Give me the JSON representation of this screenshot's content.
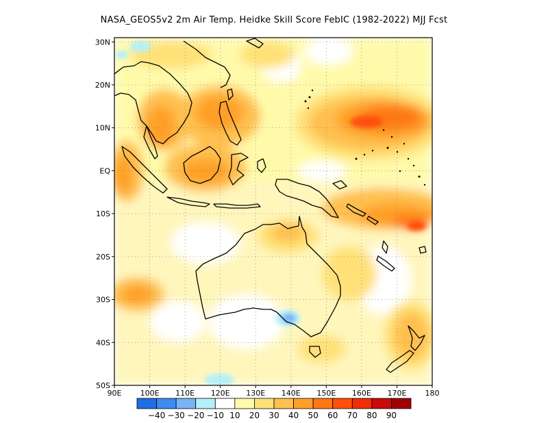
{
  "title": "NASA_GEOS5v2  2m Air Temp. Heidke Skill Score FebIC (1982-2022) MJJ Fcst",
  "map": {
    "lon_range": [
      90,
      180
    ],
    "lat_range": [
      -50,
      31
    ],
    "x_ticks": [
      {
        "value": 90,
        "label": "90E"
      },
      {
        "value": 100,
        "label": "100E"
      },
      {
        "value": 110,
        "label": "110E"
      },
      {
        "value": 120,
        "label": "120E"
      },
      {
        "value": 130,
        "label": "130E"
      },
      {
        "value": 140,
        "label": "140E"
      },
      {
        "value": 150,
        "label": "150E"
      },
      {
        "value": 160,
        "label": "160E"
      },
      {
        "value": 170,
        "label": "170E"
      },
      {
        "value": 180,
        "label": "180"
      }
    ],
    "y_ticks": [
      {
        "value": 30,
        "label": "30N"
      },
      {
        "value": 20,
        "label": "20N"
      },
      {
        "value": 10,
        "label": "10N"
      },
      {
        "value": 0,
        "label": "EQ"
      },
      {
        "value": -10,
        "label": "10S"
      },
      {
        "value": -20,
        "label": "20S"
      },
      {
        "value": -30,
        "label": "30S"
      },
      {
        "value": -40,
        "label": "40S"
      },
      {
        "value": -50,
        "label": "50S"
      }
    ],
    "grid": "dotted"
  },
  "colorbar": {
    "colors": [
      "#1e6fe6",
      "#3c8cf0",
      "#78b4f5",
      "#b4f0fa",
      "#ffffff",
      "#fffaaa",
      "#ffe178",
      "#ffc050",
      "#ffa028",
      "#ff7814",
      "#ff500a",
      "#f02d05",
      "#c80a0a",
      "#a00000"
    ],
    "labels": [
      "-40",
      "-30",
      "-20",
      "-10",
      "10",
      "20",
      "30",
      "40",
      "50",
      "60",
      "70",
      "80",
      "90"
    ]
  }
}
